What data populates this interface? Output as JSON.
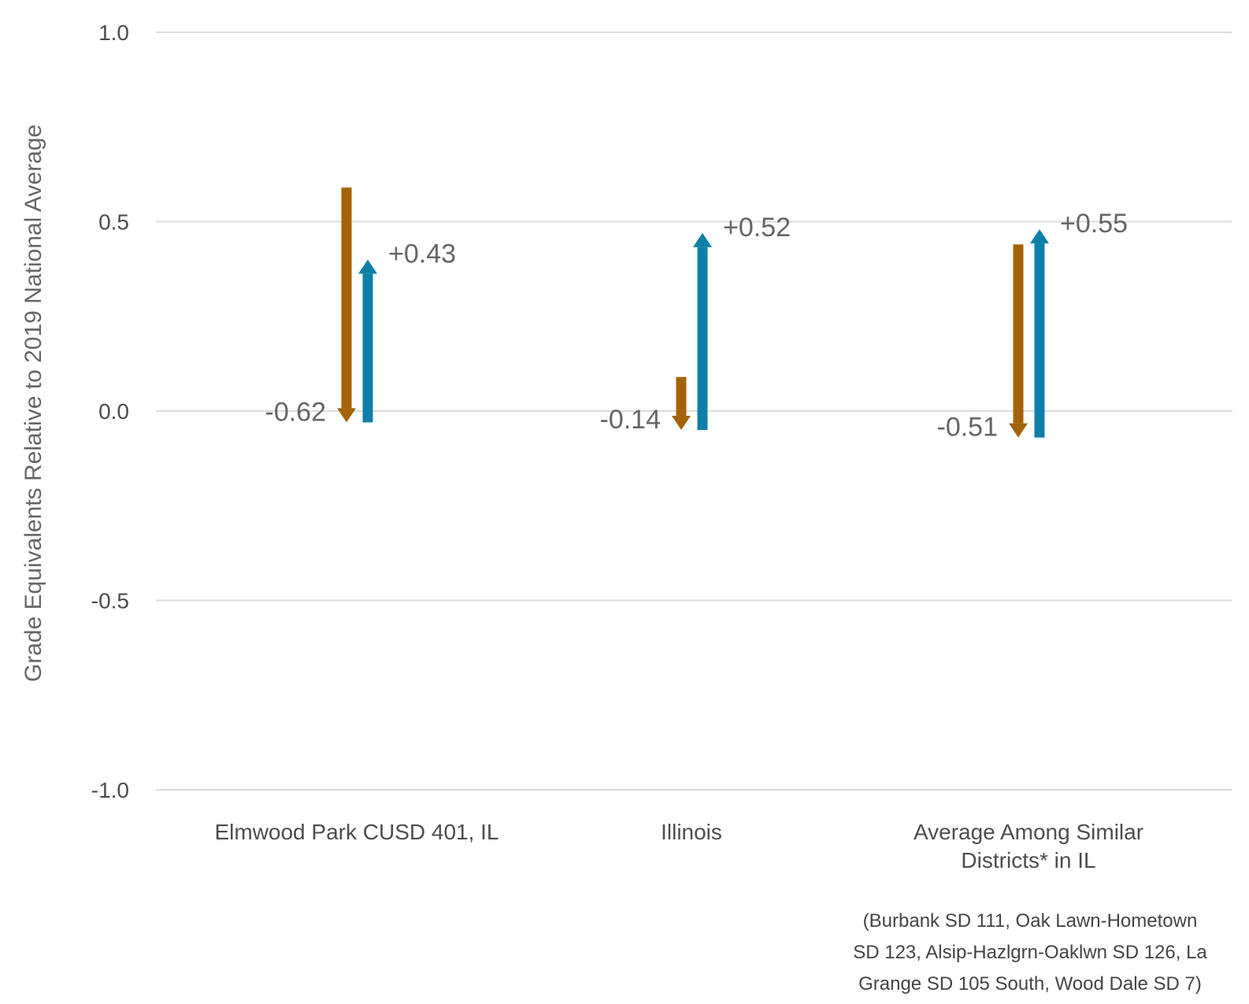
{
  "chart_data": {
    "type": "arrow",
    "ylabel": "Grade Equivalents Relative to 2019 National Average",
    "ylim": [
      -1.0,
      1.0
    ],
    "yticks": [
      1.0,
      0.5,
      0.0,
      -0.5,
      -1.0
    ],
    "ytick_labels": [
      "1.0",
      "0.5",
      "0.0",
      "-0.5",
      "-1.0"
    ],
    "grid": true,
    "colors": {
      "decline": "#a4630b",
      "recovery": "#0d80a9"
    },
    "categories": [
      {
        "label_lines": [
          "Elmwood Park CUSD 401, IL"
        ],
        "decline": {
          "from": 0.59,
          "to": -0.03,
          "label": "-0.62"
        },
        "recovery": {
          "from": -0.03,
          "to": 0.4,
          "label": "+0.43"
        }
      },
      {
        "label_lines": [
          "Illinois"
        ],
        "decline": {
          "from": 0.09,
          "to": -0.05,
          "label": "-0.14"
        },
        "recovery": {
          "from": -0.05,
          "to": 0.47,
          "label": "+0.52"
        }
      },
      {
        "label_lines": [
          "Average Among Similar",
          "Districts* in IL"
        ],
        "decline": {
          "from": 0.44,
          "to": -0.07,
          "label": "-0.51"
        },
        "recovery": {
          "from": -0.07,
          "to": 0.48,
          "label": "+0.55"
        },
        "note_lines": [
          "(Burbank SD 111, Oak Lawn-Hometown",
          "SD 123, Alsip-Hazlgrn-Oaklwn SD 126, La",
          "Grange SD 105 South, Wood Dale SD 7)"
        ]
      }
    ]
  }
}
